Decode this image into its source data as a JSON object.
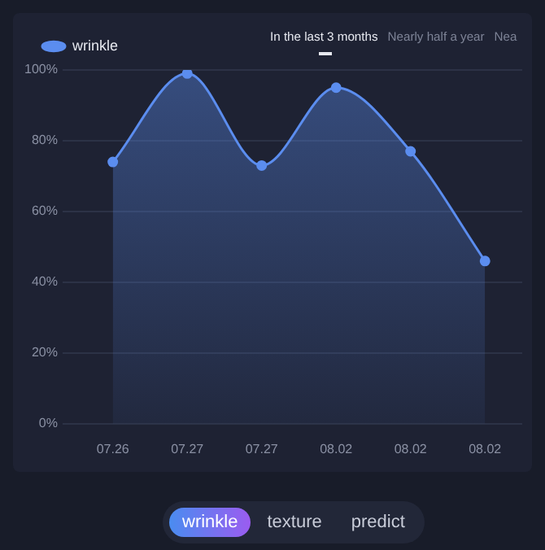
{
  "chart_data": {
    "type": "area",
    "categories": [
      "07.26",
      "07.27",
      "07.27",
      "08.02",
      "08.02",
      "08.02"
    ],
    "series": [
      {
        "name": "wrinkle",
        "color": "#5b8def",
        "values": [
          74,
          99,
          73,
          95,
          77,
          46
        ]
      }
    ],
    "ylim": [
      0,
      100
    ],
    "yticks": [
      {
        "value": 0,
        "label": "0%"
      },
      {
        "value": 20,
        "label": "20%"
      },
      {
        "value": 40,
        "label": "40%"
      },
      {
        "value": 60,
        "label": "60%"
      },
      {
        "value": 80,
        "label": "80%"
      },
      {
        "value": 100,
        "label": "100%"
      }
    ],
    "grid": "y",
    "legend": "top left",
    "marker": "circle",
    "annotations": [
      "In the last 3 months",
      "Nearly half a year",
      "Nea",
      "wrinkle",
      "texture",
      "predict"
    ]
  }
}
